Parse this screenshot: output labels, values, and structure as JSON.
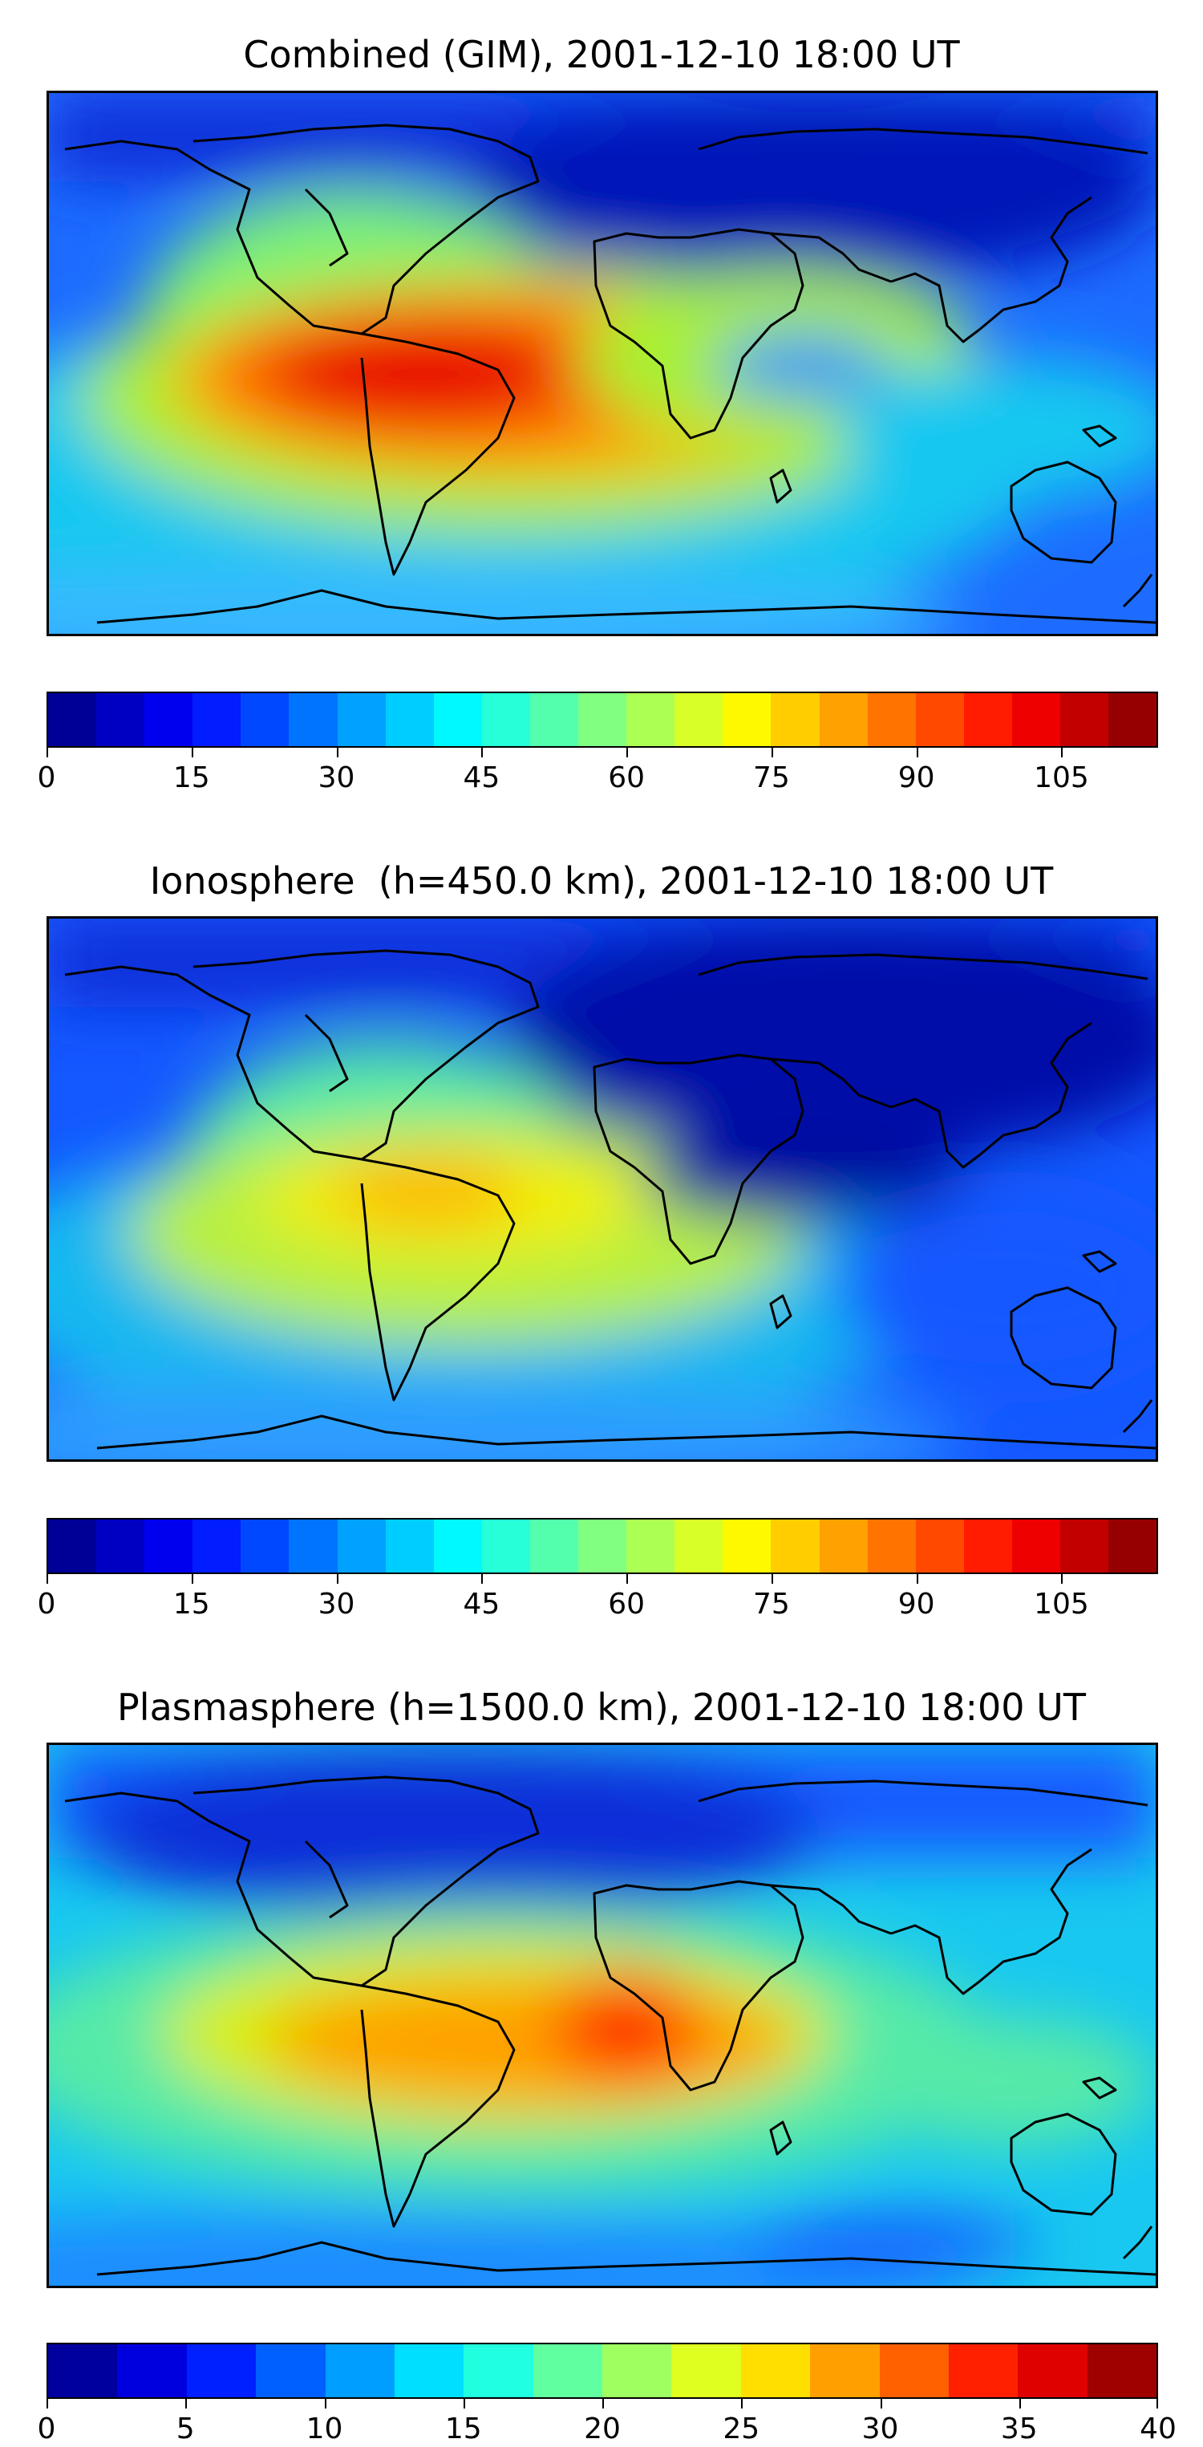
{
  "panels": [
    {
      "title": "Combined (GIM), 2001-12-10 18:00 UT",
      "colorbar": {
        "min": 0,
        "max": 115,
        "levels": 23,
        "tick_labels": [
          "0",
          "15",
          "30",
          "45",
          "60",
          "75",
          "90",
          "105"
        ],
        "tick_values": [
          0,
          15,
          30,
          45,
          60,
          75,
          90,
          105
        ]
      }
    },
    {
      "title": "Ionosphere  (h=450.0 km), 2001-12-10 18:00 UT",
      "colorbar": {
        "min": 0,
        "max": 115,
        "levels": 23,
        "tick_labels": [
          "0",
          "15",
          "30",
          "45",
          "60",
          "75",
          "90",
          "105"
        ],
        "tick_values": [
          0,
          15,
          30,
          45,
          60,
          75,
          90,
          105
        ]
      }
    },
    {
      "title": "Plasmasphere (h=1500.0 km), 2001-12-10 18:00 UT",
      "colorbar": {
        "min": 0,
        "max": 40,
        "levels": 16,
        "tick_labels": [
          "0",
          "5",
          "10",
          "15",
          "20",
          "25",
          "30",
          "35",
          "40"
        ],
        "tick_values": [
          0,
          5,
          10,
          15,
          20,
          25,
          30,
          35,
          40
        ]
      }
    }
  ],
  "colormap": "jet",
  "coastline_color": "#000000"
}
